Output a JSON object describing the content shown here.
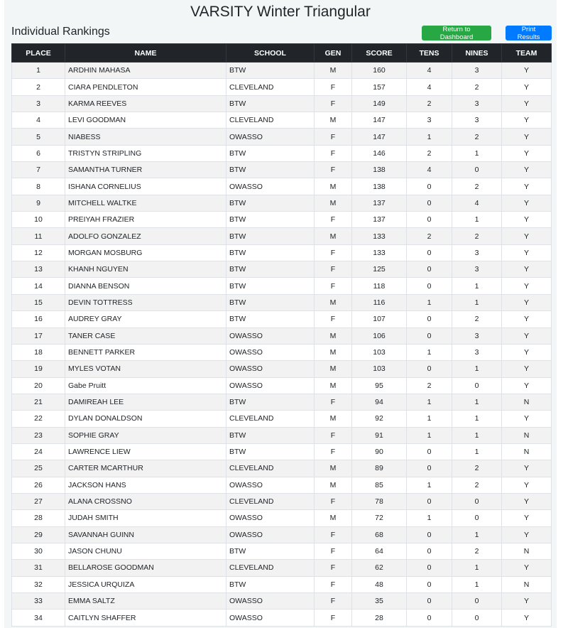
{
  "title": "VARSITY Winter Triangular",
  "subtitle": "Individual Rankings",
  "buttons": {
    "dashboard": "Return to Dashboard",
    "print": "Print Results"
  },
  "colors": {
    "dashboard": "#28a745",
    "print": "#007bff",
    "header": "#212529"
  },
  "columns": [
    "PLACE",
    "NAME",
    "SCHOOL",
    "GEN",
    "SCORE",
    "TENS",
    "NINES",
    "TEAM"
  ],
  "rows": [
    [
      "1",
      "ARDHIN MAHASA",
      "BTW",
      "M",
      "160",
      "4",
      "3",
      "Y"
    ],
    [
      "2",
      "CIARA PENDLETON",
      "CLEVELAND",
      "F",
      "157",
      "4",
      "2",
      "Y"
    ],
    [
      "3",
      "KARMA REEVES",
      "BTW",
      "F",
      "149",
      "2",
      "3",
      "Y"
    ],
    [
      "4",
      "LEVI GOODMAN",
      "CLEVELAND",
      "M",
      "147",
      "3",
      "3",
      "Y"
    ],
    [
      "5",
      "NIABESS",
      "OWASSO",
      "F",
      "147",
      "1",
      "2",
      "Y"
    ],
    [
      "6",
      "TRISTYN STRIPLING",
      "BTW",
      "F",
      "146",
      "2",
      "1",
      "Y"
    ],
    [
      "7",
      "SAMANTHA TURNER",
      "BTW",
      "F",
      "138",
      "4",
      "0",
      "Y"
    ],
    [
      "8",
      "ISHANA CORNELIUS",
      "OWASSO",
      "M",
      "138",
      "0",
      "2",
      "Y"
    ],
    [
      "9",
      "MITCHELL WALTKE",
      "BTW",
      "M",
      "137",
      "0",
      "4",
      "Y"
    ],
    [
      "10",
      "PREIYAH FRAZIER",
      "BTW",
      "F",
      "137",
      "0",
      "1",
      "Y"
    ],
    [
      "11",
      "ADOLFO GONZALEZ",
      "BTW",
      "M",
      "133",
      "2",
      "2",
      "Y"
    ],
    [
      "12",
      "MORGAN MOSBURG",
      "BTW",
      "F",
      "133",
      "0",
      "3",
      "Y"
    ],
    [
      "13",
      "KHANH NGUYEN",
      "BTW",
      "F",
      "125",
      "0",
      "3",
      "Y"
    ],
    [
      "14",
      "DIANNA BENSON",
      "BTW",
      "F",
      "118",
      "0",
      "1",
      "Y"
    ],
    [
      "15",
      "DEVIN TOTTRESS",
      "BTW",
      "M",
      "116",
      "1",
      "1",
      "Y"
    ],
    [
      "16",
      "AUDREY GRAY",
      "BTW",
      "F",
      "107",
      "0",
      "2",
      "Y"
    ],
    [
      "17",
      "TANER CASE",
      "OWASSO",
      "M",
      "106",
      "0",
      "3",
      "Y"
    ],
    [
      "18",
      "BENNETT PARKER",
      "OWASSO",
      "M",
      "103",
      "1",
      "3",
      "Y"
    ],
    [
      "19",
      "MYLES VOTAN",
      "OWASSO",
      "M",
      "103",
      "0",
      "1",
      "Y"
    ],
    [
      "20",
      "Gabe Pruitt",
      "OWASSO",
      "M",
      "95",
      "2",
      "0",
      "Y"
    ],
    [
      "21",
      "DAMIREAH LEE",
      "BTW",
      "F",
      "94",
      "1",
      "1",
      "N"
    ],
    [
      "22",
      "DYLAN DONALDSON",
      "CLEVELAND",
      "M",
      "92",
      "1",
      "1",
      "Y"
    ],
    [
      "23",
      "SOPHIE GRAY",
      "BTW",
      "F",
      "91",
      "1",
      "1",
      "N"
    ],
    [
      "24",
      "LAWRENCE LIEW",
      "BTW",
      "F",
      "90",
      "0",
      "1",
      "N"
    ],
    [
      "25",
      "CARTER MCARTHUR",
      "CLEVELAND",
      "M",
      "89",
      "0",
      "2",
      "Y"
    ],
    [
      "26",
      "JACKSON HANS",
      "OWASSO",
      "M",
      "85",
      "1",
      "2",
      "Y"
    ],
    [
      "27",
      "ALANA CROSSNO",
      "CLEVELAND",
      "F",
      "78",
      "0",
      "0",
      "Y"
    ],
    [
      "28",
      "JUDAH SMITH",
      "OWASSO",
      "M",
      "72",
      "1",
      "0",
      "Y"
    ],
    [
      "29",
      "SAVANNAH GUINN",
      "OWASSO",
      "F",
      "68",
      "0",
      "1",
      "Y"
    ],
    [
      "30",
      "JASON CHUNU",
      "BTW",
      "F",
      "64",
      "0",
      "2",
      "N"
    ],
    [
      "31",
      "BELLAROSE GOODMAN",
      "CLEVELAND",
      "F",
      "62",
      "0",
      "1",
      "Y"
    ],
    [
      "32",
      "JESSICA URQUIZA",
      "BTW",
      "F",
      "48",
      "0",
      "1",
      "N"
    ],
    [
      "33",
      "EMMA SALTZ",
      "OWASSO",
      "F",
      "35",
      "0",
      "0",
      "Y"
    ],
    [
      "34",
      "CAITLYN SHAFFER",
      "OWASSO",
      "F",
      "28",
      "0",
      "0",
      "Y"
    ]
  ]
}
